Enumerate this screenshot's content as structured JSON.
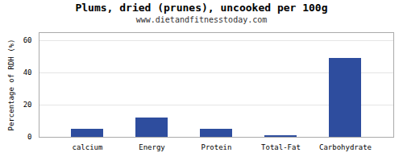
{
  "chart_data": {
    "type": "bar",
    "title": "Plums, dried (prunes), uncooked per 100g",
    "subtitle": "www.dietandfitnesstoday.com",
    "categories": [
      "calcium",
      "Energy",
      "Protein",
      "Total-Fat",
      "Carbohydrate"
    ],
    "values": [
      5,
      12,
      5,
      1,
      49
    ],
    "color": "#2e4d9e",
    "ylabel": "Percentage of RDH (%)",
    "ylim": [
      0,
      65
    ],
    "yticks": [
      0,
      20,
      40,
      60
    ],
    "grid": true
  }
}
